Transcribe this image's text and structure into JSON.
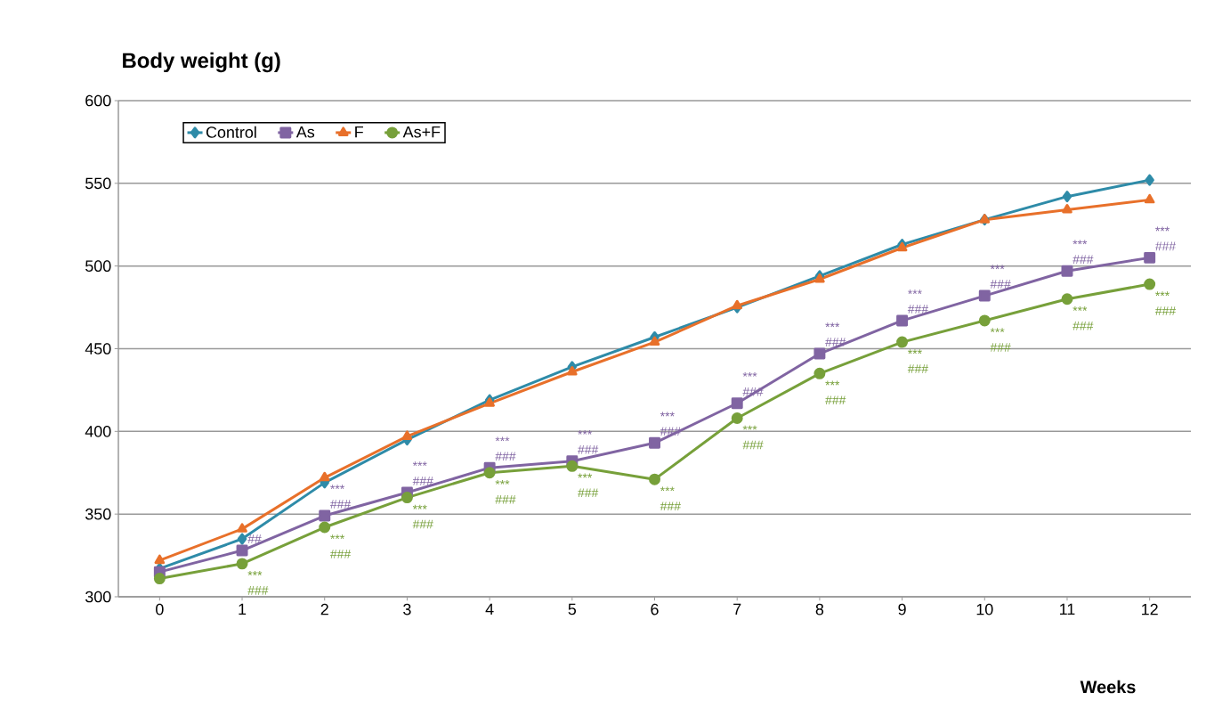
{
  "chart_data": {
    "type": "line",
    "ylabel": "Body weight (g)",
    "categories": [
      "0",
      "1",
      "2",
      "3",
      "4",
      "5",
      "6",
      "7",
      "8",
      "9",
      "10",
      "11",
      "12"
    ],
    "series": [
      {
        "name": "Control",
        "color": "#2e8ba8",
        "marker": "diamond",
        "values": [
          317,
          335,
          369,
          395,
          419,
          439,
          457,
          475,
          494,
          513,
          528,
          542,
          552
        ]
      },
      {
        "name": "As",
        "color": "#8064a2",
        "marker": "square",
        "values": [
          315,
          328,
          349,
          363,
          378,
          382,
          393,
          417,
          447,
          467,
          482,
          497,
          505
        ]
      },
      {
        "name": "F",
        "color": "#e8702a",
        "marker": "triangle",
        "values": [
          322,
          341,
          372,
          397,
          417,
          436,
          454,
          476,
          492,
          511,
          528,
          534,
          540
        ]
      },
      {
        "name": "As+F",
        "color": "#77a03a",
        "marker": "circle",
        "values": [
          311,
          320,
          342,
          360,
          375,
          379,
          371,
          408,
          435,
          454,
          467,
          480,
          489
        ]
      }
    ],
    "ylim": [
      300,
      600
    ],
    "yticks": [
      300,
      350,
      400,
      450,
      500,
      550,
      600
    ],
    "grid": "y",
    "legend": "top left",
    "line_style": "solid",
    "annotations": [
      "Weeks",
      {
        "text": "##",
        "x": "1",
        "y": 328
      },
      {
        "text": "***",
        "x": "1",
        "y": 320
      },
      {
        "text": "###",
        "x": "1",
        "y": 320
      },
      {
        "text": "***",
        "x": "2",
        "y": 349
      },
      {
        "text": "###",
        "x": "2",
        "y": 349
      },
      {
        "text": "***",
        "x": "2",
        "y": 342
      },
      {
        "text": "###",
        "x": "2",
        "y": 342
      },
      {
        "text": "***",
        "x": "3",
        "y": 363
      },
      {
        "text": "###",
        "x": "3",
        "y": 363
      },
      {
        "text": "***",
        "x": "3",
        "y": 360
      },
      {
        "text": "###",
        "x": "3",
        "y": 360
      },
      {
        "text": "***",
        "x": "4",
        "y": 378
      },
      {
        "text": "###",
        "x": "4",
        "y": 378
      },
      {
        "text": "***",
        "x": "4",
        "y": 375
      },
      {
        "text": "###",
        "x": "4",
        "y": 375
      },
      {
        "text": "***",
        "x": "5",
        "y": 382
      },
      {
        "text": "###",
        "x": "5",
        "y": 382
      },
      {
        "text": "***",
        "x": "5",
        "y": 379
      },
      {
        "text": "###",
        "x": "5",
        "y": 379
      },
      {
        "text": "***",
        "x": "6",
        "y": 393
      },
      {
        "text": "###",
        "x": "6",
        "y": 393
      },
      {
        "text": "***",
        "x": "6",
        "y": 371
      },
      {
        "text": "###",
        "x": "6",
        "y": 371
      },
      {
        "text": "***",
        "x": "7",
        "y": 417
      },
      {
        "text": "###",
        "x": "7",
        "y": 417
      },
      {
        "text": "***",
        "x": "7",
        "y": 408
      },
      {
        "text": "###",
        "x": "7",
        "y": 408
      },
      {
        "text": "***",
        "x": "8",
        "y": 447
      },
      {
        "text": "###",
        "x": "8",
        "y": 447
      },
      {
        "text": "***",
        "x": "8",
        "y": 435
      },
      {
        "text": "###",
        "x": "8",
        "y": 435
      },
      {
        "text": "***",
        "x": "9",
        "y": 467
      },
      {
        "text": "###",
        "x": "9",
        "y": 467
      },
      {
        "text": "***",
        "x": "9",
        "y": 454
      },
      {
        "text": "###",
        "x": "9",
        "y": 454
      },
      {
        "text": "***",
        "x": "10",
        "y": 482
      },
      {
        "text": "###",
        "x": "10",
        "y": 482
      },
      {
        "text": "***",
        "x": "10",
        "y": 467
      },
      {
        "text": "###",
        "x": "10",
        "y": 467
      },
      {
        "text": "***",
        "x": "11",
        "y": 497
      },
      {
        "text": "###",
        "x": "11",
        "y": 497
      },
      {
        "text": "***",
        "x": "11",
        "y": 480
      },
      {
        "text": "###",
        "x": "11",
        "y": 480
      },
      {
        "text": "***",
        "x": "12",
        "y": 505
      },
      {
        "text": "###",
        "x": "12",
        "y": 505
      },
      {
        "text": "***",
        "x": "12",
        "y": 489
      },
      {
        "text": "###",
        "x": "12",
        "y": 489
      }
    ]
  }
}
